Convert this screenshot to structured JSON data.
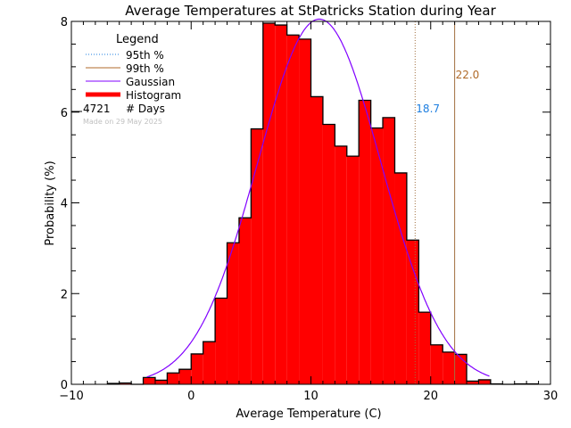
{
  "chart_data": {
    "type": "bar",
    "title": "Average Temperatures at StPatricks Station during Year",
    "xlabel": "Average Temperature (C)",
    "ylabel": "Probability (%)",
    "xlim": [
      -10,
      30
    ],
    "ylim": [
      0,
      8
    ],
    "xticks": [
      -10,
      0,
      10,
      20,
      30
    ],
    "yticks": [
      0,
      2,
      4,
      6,
      8
    ],
    "bin_width": 1,
    "bins_left_edge": [
      -7,
      -6,
      -5,
      -4,
      -3,
      -2,
      -1,
      0,
      1,
      2,
      3,
      4,
      5,
      6,
      7,
      8,
      9,
      10,
      11,
      12,
      13,
      14,
      15,
      16,
      17,
      18,
      19,
      20,
      21,
      22,
      23,
      24,
      25,
      26,
      27,
      28
    ],
    "values": [
      0.02,
      0.03,
      0,
      0.15,
      0.09,
      0.25,
      0.33,
      0.67,
      0.94,
      1.9,
      3.12,
      3.67,
      5.63,
      7.96,
      7.92,
      7.7,
      7.61,
      6.34,
      5.73,
      5.25,
      5.03,
      6.26,
      5.65,
      5.88,
      4.66,
      3.18,
      1.59,
      0.87,
      0.71,
      0.66,
      0.07,
      0.1,
      0.01,
      0,
      0.01,
      0.01
    ],
    "gaussian": {
      "mean": 10.7,
      "sigma": 5.15,
      "peak": 8.05,
      "range": [
        -3.7,
        25
      ]
    },
    "percentiles": [
      {
        "name": "95th %",
        "value": 18.7,
        "label": "18.7",
        "color": "#1e7fe0",
        "style": "dotted"
      },
      {
        "name": "99th %",
        "value": 22.0,
        "label": "22.0",
        "color": "#b06a28",
        "style": "solid"
      }
    ],
    "legend": {
      "title": "Legend",
      "placement": "top-left",
      "items": [
        {
          "label": "95th %",
          "color": "#1e7fe0",
          "style": "dotted"
        },
        {
          "label": "99th %",
          "color": "#b06a28",
          "style": "solid"
        },
        {
          "label": "Gaussian",
          "color": "#8000ff",
          "style": "solid"
        },
        {
          "label": "Histogram",
          "color": "#ff0000",
          "style": "thick"
        }
      ],
      "days_count": "4721",
      "days_label": "# Days",
      "made_on": "Made on 29 May 2025"
    },
    "colors": {
      "bar": "#ff0000",
      "gaussian": "#8000ff",
      "percentile_line": "#a07040"
    },
    "grid": false
  }
}
